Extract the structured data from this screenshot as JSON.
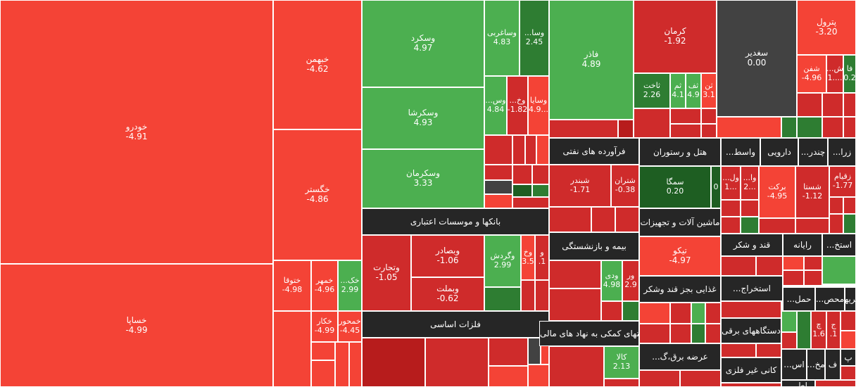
{
  "colors": {
    "red": "#f44336",
    "red_dark": "#cf2b2b",
    "red_deep": "#b71c1c",
    "green": "#4caf50",
    "green_dark": "#2e7d32",
    "green_deep": "#1e5e22",
    "neutral": "#424242",
    "sector_bar": "#262626",
    "border": "#ffffff"
  },
  "sectors": [
    "بانکها و موسسات اعتباری",
    "فلزات اساسی",
    "فرآورده های نفتی",
    "هتل و رستوران",
    "واسط...",
    "دارویی",
    "چندر...",
    "زرا...",
    "ماشین آلات و تجهیزات",
    "قند و شکر",
    "رایانه",
    "استخ...",
    "بیمه و بازنشستگی",
    "غذایی بجز قند وشکر",
    "استخراج...",
    "محص...",
    "حمل...",
    "واسطه‌گریهای مالی",
    "فعالیتهای کمکی به نهاد های مالی",
    "دستگاههای برقی",
    "عرضه برق،گ...",
    "کانی غیر فلزی",
    "اس...",
    "مخ...",
    "ف",
    "پ",
    "اط..."
  ],
  "stocks": [
    {
      "name": "خودرو",
      "change": "-4.91"
    },
    {
      "name": "خساپا",
      "change": "-4.99"
    },
    {
      "name": "خبهمن",
      "change": "-4.62"
    },
    {
      "name": "خگستر",
      "change": "-4.86"
    },
    {
      "name": "ختوقا",
      "change": "-4.98"
    },
    {
      "name": "خمهر",
      "change": "-4.96"
    },
    {
      "name": "خک...",
      "change": "2.99"
    },
    {
      "name": "خکار",
      "change": "-4.99"
    },
    {
      "name": "خمحور",
      "change": "-4.45"
    },
    {
      "name": "وسکرد",
      "change": "4.97"
    },
    {
      "name": "وساغربی",
      "change": "4.83"
    },
    {
      "name": "وسا...",
      "change": "2.45"
    },
    {
      "name": "وسکرشا",
      "change": "4.93"
    },
    {
      "name": "وس...",
      "change": "4.84"
    },
    {
      "name": "وخ...",
      "change": "-1.82"
    },
    {
      "name": "وسایا",
      "change": "4.9..."
    },
    {
      "name": "وسکرمان",
      "change": "3.33"
    },
    {
      "name": "فاذر",
      "change": "4.89"
    },
    {
      "name": "کرمان",
      "change": "-1.92"
    },
    {
      "name": "ثاخت",
      "change": "2.26"
    },
    {
      "name": "ثم",
      "change": "4.1"
    },
    {
      "name": "ثف",
      "change": "4.9"
    },
    {
      "name": "ثن",
      "change": "3.1"
    },
    {
      "name": "سغدیر",
      "change": "0.00"
    },
    {
      "name": "پترول",
      "change": "-3.20"
    },
    {
      "name": "شفن",
      "change": "-4.96"
    },
    {
      "name": "ش...",
      "change": "1...."
    },
    {
      "name": "فا",
      "change": "0.2"
    },
    {
      "name": "وتجارت",
      "change": "-1.05"
    },
    {
      "name": "وبصادر",
      "change": "-1.06"
    },
    {
      "name": "وبملت",
      "change": "-0.62"
    },
    {
      "name": "وگردش",
      "change": "2.99"
    },
    {
      "name": "وخ",
      "change": "3.5"
    },
    {
      "name": "و",
      "change": ".1"
    },
    {
      "name": "شبندر",
      "change": "-1.71"
    },
    {
      "name": "شتران",
      "change": "-0.38"
    },
    {
      "name": "سمگا",
      "change": "0.20"
    },
    {
      "name": "",
      "change": "0"
    },
    {
      "name": "ول...",
      "change": "1..."
    },
    {
      "name": "وا...",
      "change": "2..."
    },
    {
      "name": "برکت",
      "change": "-4.95"
    },
    {
      "name": "شستا",
      "change": "-1.12"
    },
    {
      "name": "زقیام",
      "change": "-1.77"
    },
    {
      "name": "تیکو",
      "change": "-4.97"
    },
    {
      "name": "ودی",
      "change": "4.98"
    },
    {
      "name": "ور",
      "change": "2.9"
    },
    {
      "name": "کالا",
      "change": "2.13"
    },
    {
      "name": "چ",
      "change": "1.6"
    },
    {
      "name": "ج",
      "change": ".1"
    }
  ]
}
